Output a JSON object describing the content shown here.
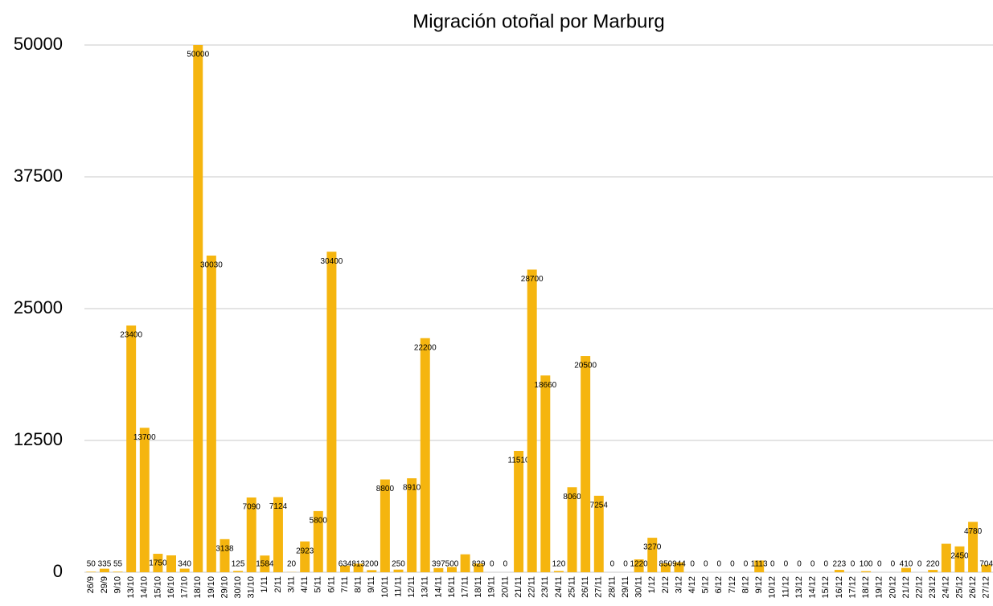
{
  "chart_data": {
    "type": "bar",
    "title": "Migración otoñal por Marburg",
    "categories": [
      "26/9",
      "29/9",
      "9/10",
      "13/10",
      "14/10",
      "15/10",
      "16/10",
      "17/10",
      "18/10",
      "19/10",
      "29/10",
      "30/10",
      "31/10",
      "1/11",
      "2/11",
      "3/11",
      "4/11",
      "5/11",
      "6/11",
      "7/11",
      "8/11",
      "9/11",
      "10/11",
      "11/11",
      "12/11",
      "13/11",
      "14/11",
      "16/11",
      "17/11",
      "18/11",
      "19/11",
      "20/11",
      "21/11",
      "22/11",
      "23/11",
      "24/11",
      "25/11",
      "26/11",
      "27/11",
      "28/11",
      "29/11",
      "30/11",
      "1/12",
      "2/12",
      "3/12",
      "4/12",
      "5/12",
      "6/12",
      "7/12",
      "8/12",
      "9/12",
      "10/12",
      "11/12",
      "13/12",
      "14/12",
      "15/12",
      "16/12",
      "17/12",
      "18/12",
      "19/12",
      "20/12",
      "21/12",
      "22/12",
      "23/12",
      "24/12",
      "25/12",
      "26/12",
      "27/12"
    ],
    "values": [
      50,
      335,
      55,
      23400,
      13700,
      1750,
      1600,
      340,
      50000,
      30030,
      3138,
      125,
      7090,
      1584,
      7124,
      20,
      2923,
      5800,
      30400,
      634,
      813,
      200,
      8800,
      250,
      8910,
      22200,
      397,
      500,
      1700,
      829,
      0,
      0,
      11510,
      28700,
      18660,
      120,
      8060,
      20500,
      7254,
      0,
      0,
      1220,
      3270,
      850,
      944,
      0,
      0,
      0,
      0,
      0,
      1113,
      0,
      0,
      0,
      0,
      0,
      223,
      0,
      100,
      0,
      0,
      410,
      0,
      220,
      2700,
      2450,
      4780,
      704
    ],
    "value_labels": [
      "50",
      "335",
      "55",
      "23400",
      "13700",
      "1750",
      null,
      "340",
      "50000",
      "30030",
      "3138",
      "125",
      "7090",
      "1584",
      "7124",
      "20",
      "2923",
      "5800",
      "30400",
      "634",
      "813",
      "200",
      "8800",
      "250",
      "8910",
      "22200",
      "397",
      "500",
      null,
      "829",
      "0",
      "0",
      "11510",
      "28700",
      "18660",
      "120",
      "8060",
      "20500",
      "7254",
      "0",
      "0",
      "1220",
      "3270",
      "850",
      "944",
      "0",
      "0",
      "0",
      "0",
      "0",
      "1113",
      "0",
      "0",
      "0",
      "0",
      "0",
      "223",
      "0",
      "100",
      "0",
      "0",
      "410",
      "0",
      "220",
      null,
      "2450",
      "4780",
      "704"
    ],
    "color": "#f5b50f",
    "ylim": [
      0,
      50000
    ],
    "yticks": [
      0,
      12500,
      25000,
      37500,
      50000
    ],
    "grid": true
  }
}
